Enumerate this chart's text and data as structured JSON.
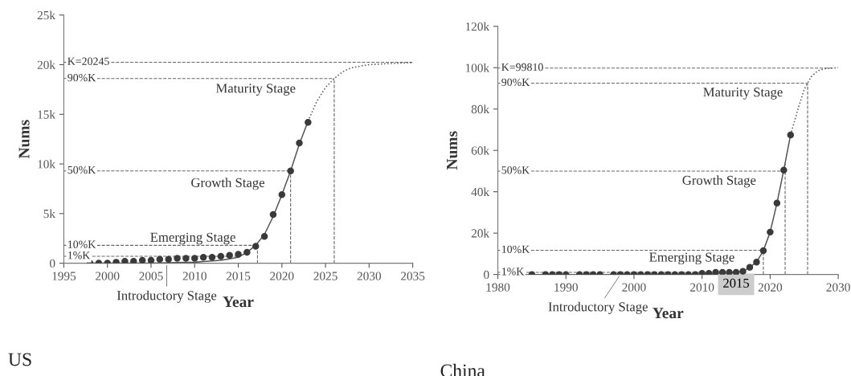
{
  "chart_data": [
    {
      "type": "scatter",
      "xlabel": "Year",
      "ylabel": "Nums",
      "xlim": [
        1995,
        2035
      ],
      "xticks": [
        1995,
        2000,
        2005,
        2010,
        2015,
        2020,
        2025,
        2030,
        2035
      ],
      "ylim": [
        0,
        25000
      ],
      "yticks": [
        0,
        {
          "value": 5000,
          "label": "5k"
        },
        {
          "value": 10000,
          "label": "10k"
        },
        {
          "value": 15000,
          "label": "15k"
        },
        {
          "value": 20000,
          "label": "20k"
        },
        {
          "value": 25000,
          "label": "25k"
        }
      ],
      "marker": "circle",
      "grid": false,
      "legend": false,
      "series": [
        {
          "type": "line",
          "color": "#555555",
          "line_style": "solid",
          "x": [
            1998,
            2005,
            2010,
            2013,
            2015,
            2016,
            2017,
            2018,
            2019,
            2020,
            2021,
            2022,
            2023
          ],
          "values": [
            0,
            0,
            100,
            300,
            600,
            1100,
            1800,
            2900,
            4700,
            6900,
            9300,
            12000,
            14300
          ],
          "marker": "none"
        },
        {
          "type": "line",
          "color": "#555555",
          "line_style": "dotted",
          "x": [
            2023,
            2024,
            2025,
            2026,
            2027,
            2028,
            2030,
            2032,
            2035
          ],
          "values": [
            14300,
            16300,
            17700,
            18600,
            19300,
            19700,
            20000,
            20100,
            20200
          ],
          "marker": "none"
        },
        {
          "color": "#3a3a3a",
          "x": [
            1998,
            1999,
            2000,
            2001,
            2002,
            2003,
            2004,
            2005,
            2006,
            2007,
            2008,
            2009,
            2010,
            2011,
            2012,
            2013,
            2014,
            2015,
            2016,
            2017,
            2018,
            2019,
            2020,
            2021,
            2022,
            2023
          ],
          "values": [
            0,
            0,
            0,
            100,
            200,
            200,
            300,
            300,
            400,
            400,
            500,
            500,
            500,
            600,
            600,
            700,
            800,
            900,
            1100,
            1700,
            2700,
            4900,
            6900,
            9300,
            12100,
            14200
          ]
        }
      ],
      "ref_lines": [
        {
          "axis": "y",
          "value": 20245,
          "label": "K=20245"
        },
        {
          "axis": "y",
          "value": 18600,
          "label": "90%K"
        },
        {
          "axis": "y",
          "value": 9300,
          "label": "50%K"
        },
        {
          "axis": "y",
          "value": 1800,
          "label": "10%K"
        },
        {
          "axis": "y",
          "value": 700,
          "label": "1%K"
        },
        {
          "axis": "x",
          "value": 2017.2
        },
        {
          "axis": "x",
          "value": 2021
        },
        {
          "axis": "x",
          "value": 2026
        }
      ],
      "annotations": [
        "Maturity Stage",
        "Growth Stage",
        "Emerging Stage",
        {
          "text": "Introductory Stage",
          "x": 2006.8,
          "y": 0
        },
        "US"
      ]
    },
    {
      "type": "scatter",
      "xlabel": "Year",
      "ylabel": "Nums",
      "xlim": [
        1980,
        2030
      ],
      "xticks": [
        1980,
        1990,
        2000,
        2010,
        2020,
        2030
      ],
      "ylim": [
        0,
        120000
      ],
      "yticks": [
        0,
        {
          "value": 20000,
          "label": "20k"
        },
        {
          "value": 40000,
          "label": "40k"
        },
        {
          "value": 60000,
          "label": "60k"
        },
        {
          "value": 80000,
          "label": "80k"
        },
        {
          "value": 100000,
          "label": "100k"
        },
        {
          "value": 120000,
          "label": "120k"
        }
      ],
      "marker": "circle",
      "grid": false,
      "legend": false,
      "series": [
        {
          "type": "line",
          "color": "#555555",
          "line_style": "solid",
          "x": [
            1985,
            2010,
            2014,
            2016,
            2017,
            2018,
            2019,
            2020,
            2021,
            2022,
            2023
          ],
          "values": [
            0,
            0,
            500,
            1500,
            3500,
            6000,
            11500,
            20500,
            34500,
            50500,
            67500
          ],
          "marker": "none"
        },
        {
          "type": "line",
          "color": "#555555",
          "line_style": "dotted",
          "x": [
            2023,
            2024,
            2025,
            2026,
            2027,
            2028,
            2030
          ],
          "values": [
            67500,
            79000,
            89500,
            95500,
            98500,
            99500,
            100000
          ],
          "marker": "none"
        },
        {
          "color": "#3a3a3a",
          "x": [
            1985,
            1987,
            1988,
            1989,
            1990,
            1992,
            1993,
            1994,
            1995,
            1997,
            1998,
            1999,
            2000,
            2001,
            2002,
            2003,
            2004,
            2005,
            2006,
            2007,
            2008,
            2009,
            2010,
            2011,
            2012,
            2013,
            2014,
            2015,
            2016,
            2017,
            2018,
            2019,
            2020,
            2021,
            2022,
            2023
          ],
          "values": [
            0,
            0,
            0,
            0,
            0,
            0,
            0,
            0,
            0,
            0,
            0,
            0,
            0,
            0,
            0,
            0,
            0,
            0,
            0,
            0,
            0,
            0,
            500,
            500,
            1000,
            1000,
            1000,
            1000,
            1500,
            3500,
            6000,
            11500,
            20500,
            34500,
            50500,
            67500
          ]
        }
      ],
      "ref_lines": [
        {
          "axis": "y",
          "value": 99810,
          "label": "K=99810"
        },
        {
          "axis": "y",
          "value": 92500,
          "label": "90%K"
        },
        {
          "axis": "y",
          "value": 50000,
          "label": "50%K"
        },
        {
          "axis": "y",
          "value": 11700,
          "label": "10%K"
        },
        {
          "axis": "y",
          "value": 1000,
          "label": "1%K"
        },
        {
          "axis": "x",
          "value": 2019
        },
        {
          "axis": "x",
          "value": 2022.2
        },
        {
          "axis": "x",
          "value": 2025.5
        }
      ],
      "annotations": [
        "Maturity Stage",
        "Growth Stage",
        "Emerging Stage",
        {
          "text": "Introductory Stage",
          "x": 1998,
          "y": 0
        },
        "2015",
        "China"
      ]
    }
  ]
}
